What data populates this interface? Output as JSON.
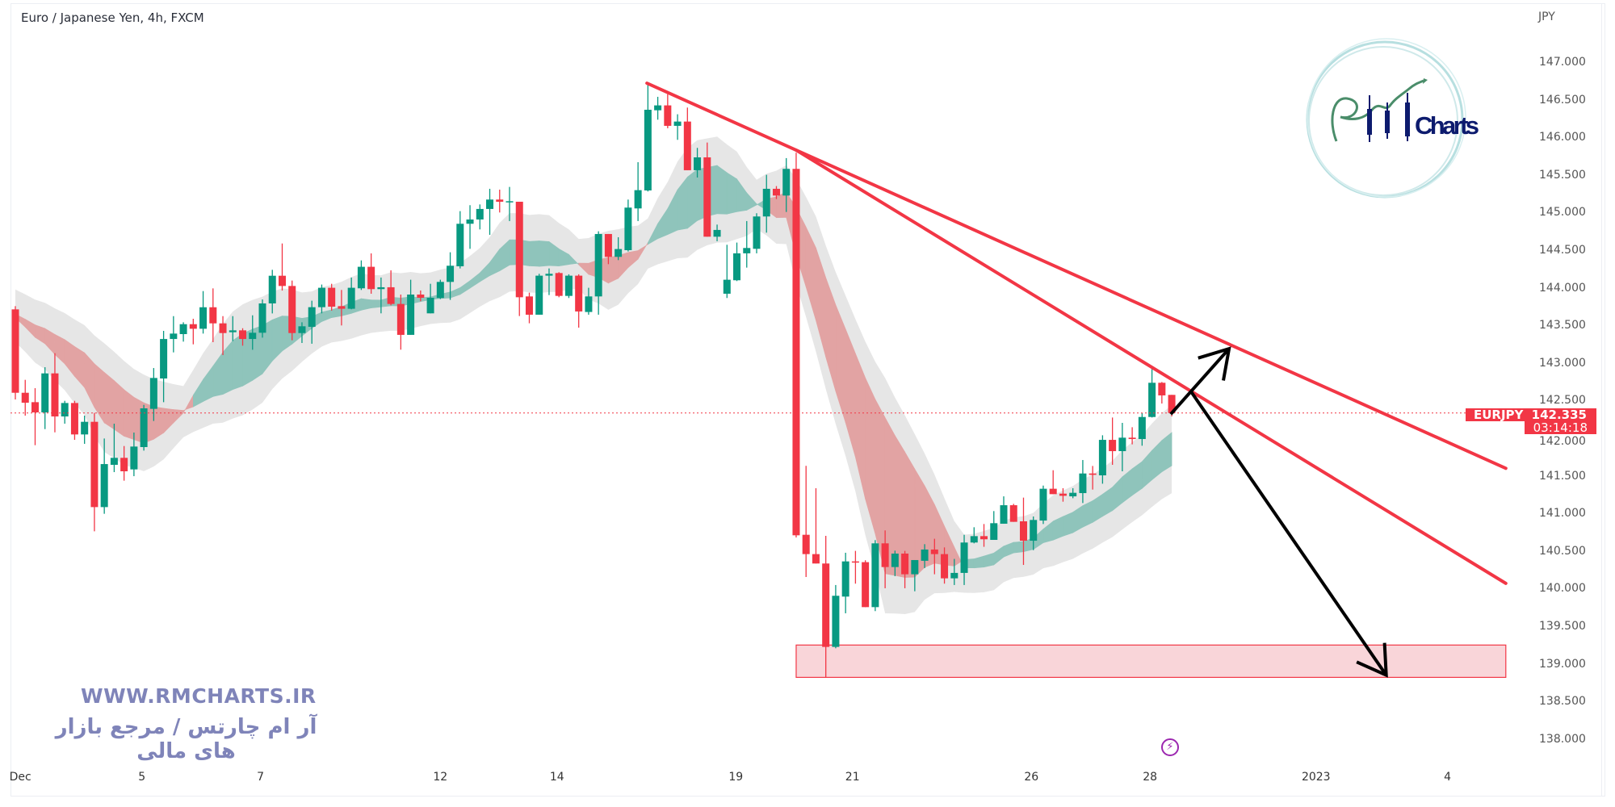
{
  "header": {
    "title": "Euro / Japanese Yen, 4h, FXCM"
  },
  "price_axis": {
    "unit": "JPY",
    "labels": [
      "147.000",
      "146.500",
      "146.000",
      "145.500",
      "145.000",
      "144.500",
      "144.000",
      "143.500",
      "143.000",
      "142.500",
      "142.000",
      "141.500",
      "141.000",
      "140.500",
      "140.000",
      "139.500",
      "139.000",
      "138.500",
      "138.000"
    ]
  },
  "last_price_tag": {
    "symbol": "EURJPY",
    "price": "142.335",
    "countdown": "03:14:18"
  },
  "watermark": {
    "url": "WWW.RMCHARTS.IR",
    "tagline": "آر ام چارتس / مرجع بازار های مالی"
  },
  "logo": {
    "text": "RM Charts",
    "word": "Charts"
  },
  "icons": {
    "bolt": "lightning-icon"
  },
  "colors": {
    "up": "#089981",
    "down": "#f23645",
    "trendline": "#f23645",
    "arrow": "#000000",
    "zone_fill": "#f9d5d9",
    "ribbon_up": "#8fc4bb",
    "ribbon_down": "#e2a3a3",
    "band": "#e6e6e6",
    "watermark": "#7f84b9"
  },
  "chart_data": {
    "type": "candlestick",
    "title": "Euro / Japanese Yen, 4h, FXCM",
    "ylabel": "JPY",
    "ylim": [
      137.8,
      147.3
    ],
    "grid": false,
    "x_ticks": [
      {
        "label": "Dec",
        "bar": 0.5
      },
      {
        "label": "5",
        "bar": 12.8
      },
      {
        "label": "7",
        "bar": 24.8
      },
      {
        "label": "12",
        "bar": 43
      },
      {
        "label": "14",
        "bar": 54.8
      },
      {
        "label": "19",
        "bar": 72.9
      },
      {
        "label": "21",
        "bar": 84.7
      },
      {
        "label": "26",
        "bar": 102.8
      },
      {
        "label": "28",
        "bar": 114.8
      },
      {
        "label": "2023",
        "bar": 131.6
      },
      {
        "label": "4",
        "bar": 144.9
      }
    ],
    "last_price": 142.335,
    "candles_ohlc": [
      [
        143.713,
        143.756,
        142.515,
        142.604
      ],
      [
        142.604,
        142.776,
        142.3,
        142.472
      ],
      [
        142.479,
        142.665,
        141.907,
        142.343
      ],
      [
        142.343,
        142.944,
        142.121,
        142.862
      ],
      [
        142.862,
        143.13,
        142.078,
        142.289
      ],
      [
        142.289,
        142.497,
        142.193,
        142.468
      ],
      [
        142.468,
        142.497,
        141.978,
        142.05
      ],
      [
        142.05,
        142.3,
        141.925,
        142.218
      ],
      [
        142.218,
        142.336,
        140.762,
        141.084
      ],
      [
        141.084,
        141.996,
        140.995,
        141.656
      ],
      [
        141.646,
        142.193,
        141.549,
        141.739
      ],
      [
        141.739,
        141.896,
        141.435,
        141.56
      ],
      [
        141.585,
        142.075,
        141.495,
        141.889
      ],
      [
        141.882,
        142.443,
        141.835,
        142.397
      ],
      [
        142.39,
        142.933,
        142.229,
        142.801
      ],
      [
        142.794,
        143.427,
        142.479,
        143.319
      ],
      [
        143.319,
        143.623,
        143.141,
        143.391
      ],
      [
        143.384,
        143.541,
        143.284,
        143.516
      ],
      [
        143.516,
        143.588,
        143.248,
        143.455
      ],
      [
        143.455,
        143.956,
        143.391,
        143.741
      ],
      [
        143.741,
        143.992,
        143.277,
        143.527
      ],
      [
        143.527,
        143.623,
        143.105,
        143.398
      ],
      [
        143.409,
        143.623,
        143.291,
        143.434
      ],
      [
        143.434,
        143.462,
        143.23,
        143.319
      ],
      [
        143.319,
        143.634,
        143.176,
        143.402
      ],
      [
        143.402,
        143.845,
        143.337,
        143.792
      ],
      [
        143.792,
        144.239,
        143.659,
        144.16
      ],
      [
        144.16,
        144.589,
        143.963,
        144.024
      ],
      [
        144.024,
        144.096,
        143.302,
        143.398
      ],
      [
        143.398,
        143.541,
        143.266,
        143.488
      ],
      [
        143.481,
        143.828,
        143.256,
        143.742
      ],
      [
        143.742,
        144.043,
        143.66,
        144.0
      ],
      [
        144.0,
        144.053,
        143.696,
        143.749
      ],
      [
        143.756,
        143.971,
        143.499,
        143.721
      ],
      [
        143.721,
        144.136,
        143.714,
        144.0
      ],
      [
        143.993,
        144.364,
        143.971,
        144.279
      ],
      [
        144.279,
        144.457,
        143.921,
        143.982
      ],
      [
        143.982,
        144.136,
        143.66,
        144.007
      ],
      [
        144.007,
        144.232,
        143.767,
        143.785
      ],
      [
        143.785,
        143.91,
        143.177,
        143.374
      ],
      [
        143.374,
        144.107,
        143.374,
        143.91
      ],
      [
        143.91,
        143.964,
        143.821,
        143.867
      ],
      [
        143.66,
        144.053,
        143.66,
        143.867
      ],
      [
        143.864,
        144.107,
        143.85,
        144.078
      ],
      [
        144.078,
        144.472,
        143.839,
        144.293
      ],
      [
        144.286,
        145.019,
        144.257,
        144.851
      ],
      [
        144.851,
        145.098,
        144.518,
        144.908
      ],
      [
        144.908,
        145.108,
        144.776,
        145.048
      ],
      [
        145.048,
        145.316,
        144.704,
        145.173
      ],
      [
        145.173,
        145.305,
        145.001,
        145.144
      ],
      [
        145.144,
        145.341,
        144.887,
        145.151
      ],
      [
        145.144,
        145.144,
        143.624,
        143.874
      ],
      [
        143.885,
        143.935,
        143.528,
        143.642
      ],
      [
        143.642,
        144.186,
        143.642,
        144.161
      ],
      [
        144.161,
        144.257,
        143.903,
        144.186
      ],
      [
        144.196,
        144.207,
        143.874,
        143.892
      ],
      [
        143.892,
        144.179,
        143.864,
        144.161
      ],
      [
        144.161,
        144.179,
        143.47,
        143.685
      ],
      [
        143.678,
        144.0,
        143.642,
        143.885
      ],
      [
        143.885,
        144.751,
        143.642,
        144.715
      ],
      [
        144.715,
        144.715,
        144.314,
        144.411
      ],
      [
        144.411,
        144.672,
        144.368,
        144.515
      ],
      [
        144.5,
        145.173,
        144.483,
        145.066
      ],
      [
        145.055,
        145.67,
        144.887,
        145.298
      ],
      [
        145.294,
        146.725,
        145.28,
        146.367
      ],
      [
        146.36,
        146.539,
        146.235,
        146.425
      ],
      [
        146.425,
        146.575,
        146.121,
        146.153
      ],
      [
        146.153,
        146.307,
        145.967,
        146.21
      ],
      [
        146.21,
        146.396,
        145.563,
        145.563
      ],
      [
        145.563,
        145.86,
        145.466,
        145.734
      ],
      [
        145.734,
        145.931,
        144.679,
        144.679
      ],
      [
        144.679,
        144.84,
        144.619,
        144.769
      ],
      [
        143.921,
        144.572,
        143.864,
        144.107
      ],
      [
        144.1,
        144.601,
        144.089,
        144.458
      ],
      [
        144.458,
        144.887,
        144.268,
        144.529
      ],
      [
        144.518,
        144.991,
        144.458,
        144.948
      ],
      [
        144.948,
        145.502,
        144.733,
        145.316
      ],
      [
        145.316,
        145.352,
        145.18,
        145.226
      ],
      [
        145.226,
        145.724,
        145.008,
        145.581
      ],
      [
        145.581,
        145.795,
        140.68,
        140.709
      ],
      [
        140.716,
        141.632,
        140.155,
        140.459
      ],
      [
        140.459,
        141.335,
        140.334,
        140.334
      ],
      [
        140.334,
        140.702,
        138.821,
        139.225
      ],
      [
        139.225,
        140.048,
        139.207,
        139.905
      ],
      [
        139.894,
        140.477,
        139.672,
        140.362
      ],
      [
        140.362,
        140.502,
        140.066,
        140.352
      ],
      [
        140.352,
        140.377,
        139.754,
        139.754
      ],
      [
        139.754,
        140.645,
        139.701,
        140.602
      ],
      [
        140.602,
        140.774,
        140.005,
        140.287
      ],
      [
        140.287,
        140.505,
        140.166,
        140.466
      ],
      [
        140.466,
        140.502,
        140.005,
        140.191
      ],
      [
        140.191,
        140.38,
        139.965,
        140.38
      ],
      [
        140.37,
        140.591,
        140.273,
        140.52
      ],
      [
        140.52,
        140.663,
        140.191,
        140.459
      ],
      [
        140.459,
        140.548,
        140.066,
        140.137
      ],
      [
        140.137,
        140.395,
        140.048,
        140.209
      ],
      [
        140.209,
        140.716,
        140.048,
        140.613
      ],
      [
        140.613,
        140.816,
        140.602,
        140.698
      ],
      [
        140.698,
        140.859,
        140.556,
        140.656
      ],
      [
        140.648,
        141.031,
        140.648,
        140.87
      ],
      [
        140.863,
        141.227,
        140.863,
        141.109
      ],
      [
        141.109,
        141.127,
        140.888,
        140.888
      ],
      [
        140.895,
        141.21,
        140.315,
        140.637
      ],
      [
        140.637,
        140.959,
        140.512,
        140.913
      ],
      [
        140.905,
        141.37,
        140.859,
        141.328
      ],
      [
        141.328,
        141.574,
        141.256,
        141.256
      ],
      [
        141.263,
        141.335,
        141.156,
        141.234
      ],
      [
        141.227,
        141.335,
        141.202,
        141.274
      ],
      [
        141.27,
        141.71,
        141.138,
        141.531
      ],
      [
        141.531,
        141.631,
        141.317,
        141.513
      ],
      [
        141.506,
        142.039,
        141.395,
        141.978
      ],
      [
        141.978,
        142.275,
        141.646,
        141.828
      ],
      [
        141.828,
        142.204,
        141.56,
        142.007
      ],
      [
        142.007,
        142.146,
        141.918,
        141.989
      ],
      [
        141.989,
        142.336,
        141.9,
        142.282
      ],
      [
        142.282,
        142.944,
        142.275,
        142.737
      ],
      [
        142.737,
        142.747,
        142.461,
        142.569
      ],
      [
        142.576,
        142.576,
        142.29,
        142.335
      ]
    ],
    "drawings": {
      "trendlines": [
        {
          "from": {
            "bar": 63.9,
            "price": 146.72
          },
          "to": {
            "bar": 150.8,
            "price": 141.6
          }
        },
        {
          "from": {
            "bar": 79.0,
            "price": 145.83
          },
          "to": {
            "bar": 150.8,
            "price": 140.07
          }
        }
      ],
      "zone": {
        "from_bar": 79.0,
        "to_bar": 150.8,
        "top": 139.25,
        "bottom": 138.82
      },
      "arrows": [
        {
          "from": {
            "bar": 116.9,
            "price": 142.32
          },
          "to": {
            "bar": 122.8,
            "price": 143.19
          }
        },
        {
          "from": {
            "bar": 119.0,
            "price": 142.61
          },
          "to": {
            "bar": 138.7,
            "price": 138.85
          }
        }
      ]
    }
  }
}
